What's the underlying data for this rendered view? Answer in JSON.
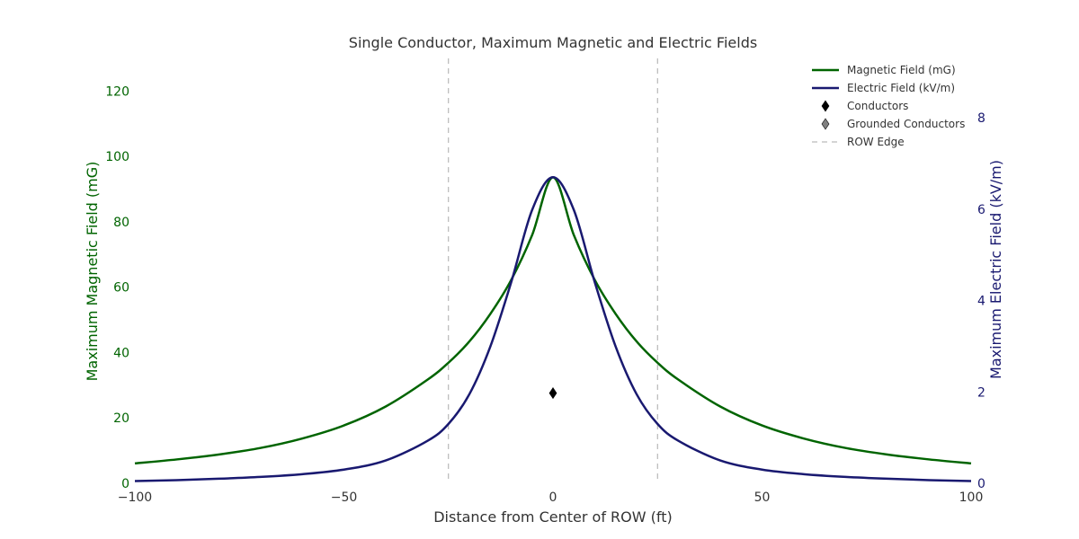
{
  "chart_data": {
    "type": "line",
    "title": "Single Conductor, Maximum Magnetic and Electric Fields",
    "xlabel": "Distance from Center of ROW (ft)",
    "ylabel_left": "Maximum Magnetic Field (mG)",
    "ylabel_right": "Maximum Electric Field (kV/m)",
    "xlim": [
      -100,
      100
    ],
    "ylim_left": [
      0,
      130
    ],
    "ylim_right": [
      0,
      9.3
    ],
    "x_ticks": [
      -100,
      -50,
      0,
      50,
      100
    ],
    "x_tick_labels": [
      "−100",
      "−50",
      "0",
      "50",
      "100"
    ],
    "y_ticks_left": [
      0,
      20,
      40,
      60,
      80,
      100,
      120
    ],
    "y_tick_labels_left": [
      "0",
      "20",
      "40",
      "60",
      "80",
      "100",
      "120"
    ],
    "y_ticks_right": [
      0,
      2,
      4,
      6,
      8
    ],
    "y_tick_labels_right": [
      "0",
      "2",
      "4",
      "6",
      "8"
    ],
    "grid": false,
    "legend_position": "top-right",
    "series": [
      {
        "name": "Magnetic Field (mG)",
        "axis": "left",
        "color": "#006400",
        "x": [
          -100,
          -90,
          -80,
          -70,
          -60,
          -50,
          -40,
          -30,
          -25,
          -20,
          -15,
          -10,
          -5,
          0,
          5,
          10,
          15,
          20,
          25,
          30,
          40,
          50,
          60,
          70,
          80,
          90,
          100
        ],
        "y": [
          6.1,
          7.3,
          8.8,
          10.8,
          13.7,
          17.7,
          23.5,
          31.7,
          36.9,
          43.4,
          51.8,
          62.2,
          75.9,
          93.6,
          75.9,
          62.2,
          51.8,
          43.4,
          36.9,
          31.7,
          23.5,
          17.7,
          13.7,
          10.8,
          8.8,
          7.3,
          6.1
        ]
      },
      {
        "name": "Electric Field (kV/m)",
        "axis": "right",
        "color": "#191970",
        "x": [
          -100,
          -90,
          -80,
          -70,
          -60,
          -50,
          -40,
          -30,
          -25,
          -20,
          -15,
          -10,
          -5,
          0,
          5,
          10,
          15,
          20,
          25,
          30,
          40,
          50,
          60,
          70,
          80,
          90,
          100
        ],
        "y": [
          0.05,
          0.07,
          0.1,
          0.14,
          0.2,
          0.3,
          0.5,
          0.93,
          1.3,
          1.95,
          2.99,
          4.4,
          5.98,
          6.7,
          5.98,
          4.4,
          2.99,
          1.95,
          1.3,
          0.93,
          0.5,
          0.3,
          0.2,
          0.14,
          0.1,
          0.07,
          0.05
        ]
      }
    ],
    "conductors": [
      {
        "x": 0,
        "y_left": 27.6
      }
    ],
    "grounded_conductors": [],
    "row_edges": [
      -25,
      25
    ],
    "legend": [
      {
        "label": "Magnetic Field (mG)",
        "kind": "line",
        "color": "#006400"
      },
      {
        "label": "Electric Field (kV/m)",
        "kind": "line",
        "color": "#191970"
      },
      {
        "label": "Conductors",
        "kind": "diamond",
        "color": "#000000"
      },
      {
        "label": "Grounded Conductors",
        "kind": "diamond",
        "color": "#808080"
      },
      {
        "label": "ROW Edge",
        "kind": "dashed",
        "color": "#aaaaaa"
      }
    ]
  }
}
